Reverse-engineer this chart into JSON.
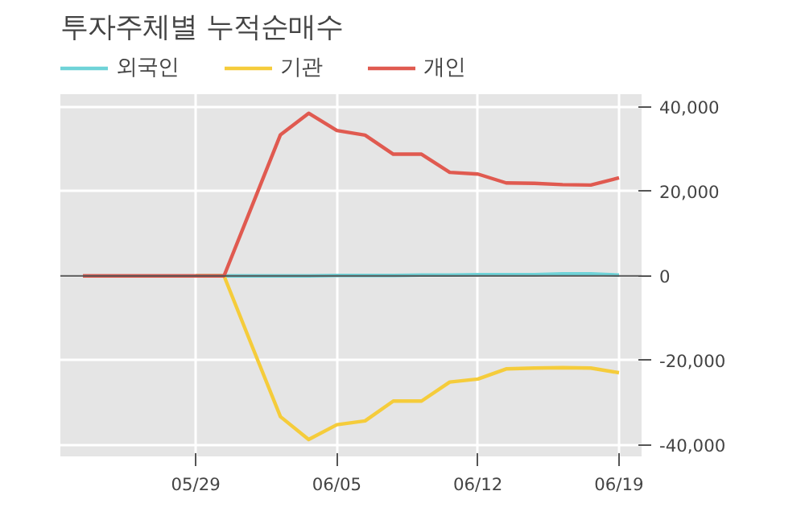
{
  "chart_data": {
    "type": "line",
    "title": "투자주체별 누적순매수",
    "categories": [
      null,
      null,
      null,
      null,
      "05/29",
      null,
      null,
      null,
      null,
      "06/05",
      null,
      null,
      null,
      null,
      "06/12",
      null,
      null,
      null,
      null,
      "06/19"
    ],
    "series": [
      {
        "name": "외국인",
        "color": "#6fd3d8",
        "values": [
          null,
          null,
          null,
          null,
          0,
          0,
          0,
          0,
          0,
          100,
          100,
          100,
          200,
          200,
          300,
          300,
          300,
          500,
          500,
          200
        ]
      },
      {
        "name": "기관",
        "color": "#f5cc3b",
        "values": [
          null,
          null,
          null,
          null,
          0,
          0,
          -16700,
          -33300,
          -38700,
          -35200,
          -34300,
          -29600,
          -29600,
          -25100,
          -24400,
          -22000,
          -21800,
          -21700,
          -21800,
          -22900
        ]
      },
      {
        "name": "개인",
        "color": "#e05a50",
        "values": [
          0,
          0,
          0,
          0,
          0,
          0,
          16700,
          33400,
          38500,
          34400,
          33300,
          28800,
          28800,
          24500,
          24100,
          22000,
          21900,
          21600,
          21500,
          23200
        ]
      }
    ],
    "ylim": [
      -42700,
      43000
    ],
    "yticks": [
      {
        "value": -40000,
        "label": "-40,000"
      },
      {
        "value": -20000,
        "label": "-20,000"
      },
      {
        "value": 0,
        "label": "0"
      },
      {
        "value": 20000,
        "label": "20,000"
      },
      {
        "value": 40000,
        "label": "40,000"
      }
    ],
    "ref_lines": [
      {
        "axis": "y",
        "value": 0,
        "color": "#555555"
      }
    ],
    "grid": true,
    "legend": "top left"
  }
}
